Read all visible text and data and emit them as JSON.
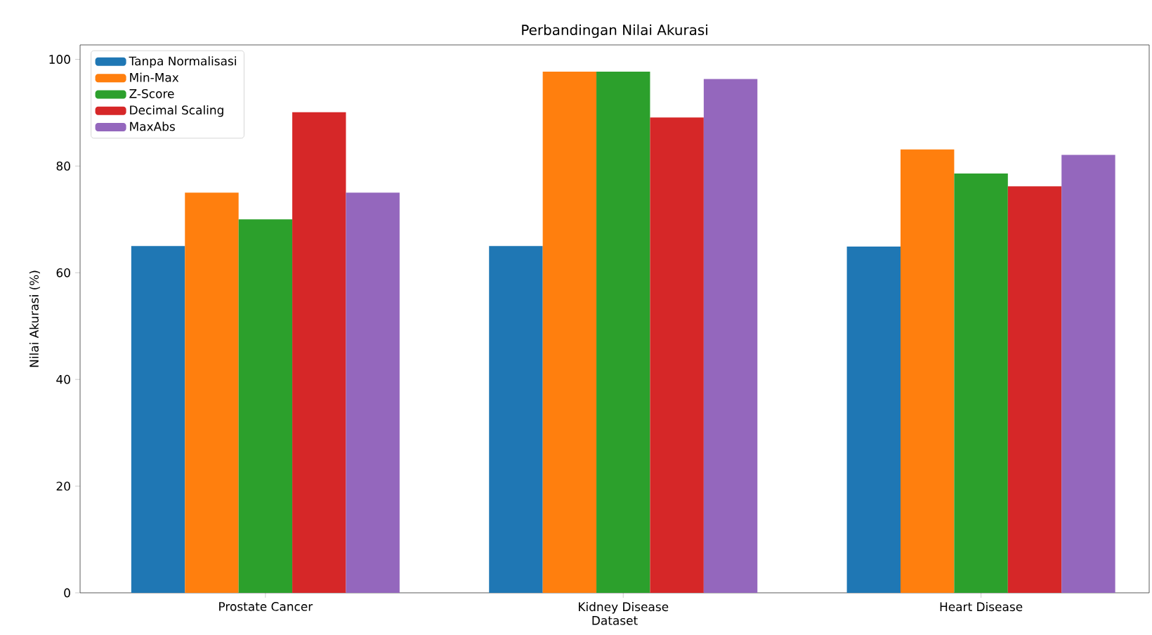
{
  "chart_data": {
    "type": "bar",
    "title": "Perbandingan Nilai Akurasi",
    "xlabel": "Dataset",
    "ylabel": "Nilai Akurasi (%)",
    "categories": [
      "Prostate Cancer",
      "Kidney Disease",
      "Heart Disease"
    ],
    "series": [
      {
        "name": "Tanpa Normalisasi",
        "color": "#1f77b4",
        "values": [
          65,
          65,
          64.9
        ]
      },
      {
        "name": "Min-Max",
        "color": "#ff7f0e",
        "values": [
          75,
          97.7,
          83.1
        ]
      },
      {
        "name": "Z-Score",
        "color": "#2ca02c",
        "values": [
          70,
          97.7,
          78.6
        ]
      },
      {
        "name": "Decimal Scaling",
        "color": "#d62728",
        "values": [
          90.1,
          89.1,
          76.2
        ]
      },
      {
        "name": "MaxAbs",
        "color": "#9467bd",
        "values": [
          75,
          96.3,
          82.1
        ]
      }
    ],
    "ylim": [
      0,
      102.7
    ],
    "yticks": [
      0,
      20,
      40,
      60,
      80,
      100
    ],
    "legend": "top left"
  }
}
